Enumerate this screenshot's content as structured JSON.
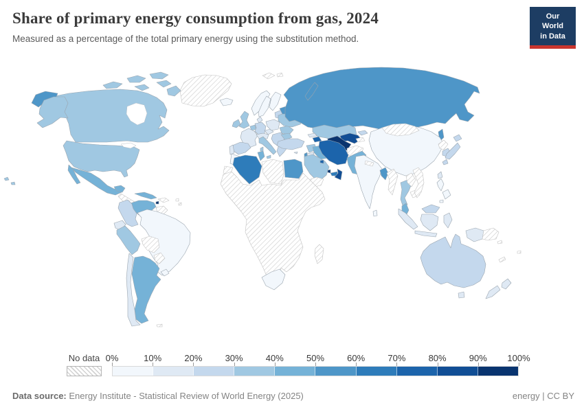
{
  "header": {
    "title": "Share of primary energy consumption from gas, 2024",
    "subtitle": "Measured as a percentage of the total primary energy using the substitution method.",
    "logo_line1": "Our World",
    "logo_line2": "in Data",
    "logo_bg": "#1d3d63",
    "logo_accent": "#c9352e"
  },
  "legend": {
    "no_data_label": "No data",
    "ticks": [
      "0%",
      "10%",
      "20%",
      "30%",
      "40%",
      "50%",
      "60%",
      "70%",
      "80%",
      "90%",
      "100%"
    ],
    "bin_colors": [
      "#f2f7fc",
      "#dfe9f4",
      "#c4d8ed",
      "#a0c8e2",
      "#75b2d7",
      "#4e96c8",
      "#2e7cba",
      "#1c64ab",
      "#114e95",
      "#09346f"
    ]
  },
  "map": {
    "ocean": "#ffffff",
    "border_color": "#9aa5af",
    "no_data_border": "#c2c2c2",
    "regions": {
      "greenland": "no_data",
      "svalbard": "no_data",
      "iceland": 0,
      "canada": 3,
      "usa": 3,
      "hawaii": 3,
      "alaska": 3,
      "chukotka": 5,
      "mexico": 4,
      "central_america": "no_data",
      "cuba": 4,
      "hispaniola": "no_data",
      "antilles": "no_data",
      "venezuela": 4,
      "trinidad": 9,
      "colombia": 2,
      "guyana": "no_data",
      "ecuador": 1,
      "peru": 3,
      "brazil": 0,
      "bolivia": "no_data",
      "paraguay": "no_data",
      "uruguay": 0,
      "argentina": 4,
      "chile": 1,
      "falklands": "no_data",
      "norway": 0,
      "sweden": 0,
      "finland": 0,
      "baltics": 2,
      "denmark": 1,
      "uk": 3,
      "ireland": 3,
      "benelux": 3,
      "germany": 2,
      "france": 1,
      "spain": 2,
      "portugal": 1,
      "alpine": 1,
      "czechia": 1,
      "poland": 1,
      "italy": 3,
      "balkans": 2,
      "romania": 3,
      "bulgaria": 3,
      "greece": 2,
      "ukraine": 3,
      "belarus": 5,
      "russia": 5,
      "kazakhstan": 3,
      "uzbekistan": 8,
      "turkmenistan": 9,
      "kyrgyzstan": 2,
      "tajikistan": "no_data",
      "georgia": 1,
      "azerbaijan": 7,
      "turkey": 2,
      "cyprus": 1,
      "syria": 3,
      "israel": 5,
      "jordan": 1,
      "iraq": 4,
      "iran": 7,
      "afghanistan": "no_data",
      "pakistan": 4,
      "saudi_arabia": 3,
      "kuwait": 7,
      "qatar": 9,
      "uae": 6,
      "oman": 8,
      "yemen": "no_data",
      "morocco": 0,
      "western_sahara": "no_data",
      "algeria": 6,
      "tunisia": 4,
      "libya": "no_data",
      "egypt": 5,
      "africa": "no_data",
      "south_africa": 0,
      "madagascar": "no_data",
      "india": 0,
      "sri_lanka": 0,
      "nepal": "no_data",
      "china": 0,
      "mongolia": "no_data",
      "bangladesh": 5,
      "myanmar": "no_data",
      "thailand": 3,
      "laos": "no_data",
      "cambodia": "no_data",
      "vietnam": "no_data",
      "malaysia_peninsula": 4,
      "malaysia_borneo": 2,
      "indonesia": 1,
      "png": "no_data",
      "philippines": 0,
      "taiwan": 1,
      "north_korea": "no_data",
      "south_korea": 2,
      "japan": 2,
      "australia": 2,
      "tasmania": 1,
      "new_zealand": 1,
      "new_caledonia": "no_data",
      "fiji": "no_data",
      "solomon": "no_data"
    }
  },
  "footer": {
    "source_label": "Data source:",
    "source_text": " Energy Institute - Statistical Review of World Energy (2025)",
    "license": "energy | CC BY"
  },
  "chart_data": {
    "type": "choropleth_map",
    "title": "Share of primary energy consumption from gas, 2024",
    "subtitle": "Measured as a percentage of the total primary energy using the substitution method.",
    "unit": "%",
    "scale_bins": [
      "0-10%",
      "10-20%",
      "20-30%",
      "30-40%",
      "40-50%",
      "50-60%",
      "60-70%",
      "70-80%",
      "80-90%",
      "90-100%"
    ],
    "legend_position": "bottom",
    "values": [
      {
        "country": "United States",
        "share": "30-40%"
      },
      {
        "country": "Canada",
        "share": "30-40%"
      },
      {
        "country": "Mexico",
        "share": "40-50%"
      },
      {
        "country": "Cuba",
        "share": "40-50%"
      },
      {
        "country": "Venezuela",
        "share": "40-50%"
      },
      {
        "country": "Trinidad and Tobago",
        "share": "90-100%"
      },
      {
        "country": "Colombia",
        "share": "20-30%"
      },
      {
        "country": "Ecuador",
        "share": "10-20%"
      },
      {
        "country": "Peru",
        "share": "30-40%"
      },
      {
        "country": "Brazil",
        "share": "0-10%"
      },
      {
        "country": "Chile",
        "share": "10-20%"
      },
      {
        "country": "Argentina",
        "share": "40-50%"
      },
      {
        "country": "Uruguay",
        "share": "0-10%"
      },
      {
        "country": "Iceland",
        "share": "0-10%"
      },
      {
        "country": "Norway",
        "share": "0-10%"
      },
      {
        "country": "Sweden",
        "share": "0-10%"
      },
      {
        "country": "Finland",
        "share": "0-10%"
      },
      {
        "country": "United Kingdom",
        "share": "30-40%"
      },
      {
        "country": "Ireland",
        "share": "30-40%"
      },
      {
        "country": "France",
        "share": "10-20%"
      },
      {
        "country": "Spain",
        "share": "20-30%"
      },
      {
        "country": "Portugal",
        "share": "10-20%"
      },
      {
        "country": "Germany",
        "share": "20-30%"
      },
      {
        "country": "Netherlands",
        "share": "30-40%"
      },
      {
        "country": "Poland",
        "share": "10-20%"
      },
      {
        "country": "Italy",
        "share": "30-40%"
      },
      {
        "country": "Greece",
        "share": "20-30%"
      },
      {
        "country": "Romania",
        "share": "30-40%"
      },
      {
        "country": "Ukraine",
        "share": "30-40%"
      },
      {
        "country": "Belarus",
        "share": "50-60%"
      },
      {
        "country": "Russia",
        "share": "50-60%"
      },
      {
        "country": "Kazakhstan",
        "share": "30-40%"
      },
      {
        "country": "Turkmenistan",
        "share": "90-100%"
      },
      {
        "country": "Uzbekistan",
        "share": "80-90%"
      },
      {
        "country": "Azerbaijan",
        "share": "70-80%"
      },
      {
        "country": "Georgia",
        "share": "10-20%"
      },
      {
        "country": "Turkey",
        "share": "20-30%"
      },
      {
        "country": "Syria",
        "share": "30-40%"
      },
      {
        "country": "Iraq",
        "share": "40-50%"
      },
      {
        "country": "Iran",
        "share": "70-80%"
      },
      {
        "country": "Pakistan",
        "share": "40-50%"
      },
      {
        "country": "India",
        "share": "0-10%"
      },
      {
        "country": "China",
        "share": "0-10%"
      },
      {
        "country": "Japan",
        "share": "20-30%"
      },
      {
        "country": "South Korea",
        "share": "20-30%"
      },
      {
        "country": "Taiwan",
        "share": "10-20%"
      },
      {
        "country": "Bangladesh",
        "share": "50-60%"
      },
      {
        "country": "Thailand",
        "share": "30-40%"
      },
      {
        "country": "Malaysia",
        "share": "30-40%"
      },
      {
        "country": "Indonesia",
        "share": "10-20%"
      },
      {
        "country": "Philippines",
        "share": "0-10%"
      },
      {
        "country": "Australia",
        "share": "20-30%"
      },
      {
        "country": "New Zealand",
        "share": "10-20%"
      },
      {
        "country": "Saudi Arabia",
        "share": "30-40%"
      },
      {
        "country": "Kuwait",
        "share": "70-80%"
      },
      {
        "country": "Qatar",
        "share": "90-100%"
      },
      {
        "country": "United Arab Emirates",
        "share": "60-70%"
      },
      {
        "country": "Oman",
        "share": "80-90%"
      },
      {
        "country": "Israel",
        "share": "50-60%"
      },
      {
        "country": "Jordan",
        "share": "10-20%"
      },
      {
        "country": "Egypt",
        "share": "50-60%"
      },
      {
        "country": "Tunisia",
        "share": "40-50%"
      },
      {
        "country": "Algeria",
        "share": "60-70%"
      },
      {
        "country": "Morocco",
        "share": "0-10%"
      },
      {
        "country": "South Africa",
        "share": "0-10%"
      }
    ],
    "no_data": [
      "Greenland",
      "Bolivia",
      "Paraguay",
      "Guyana",
      "Suriname",
      "most of Sub-Saharan Africa",
      "Libya",
      "Yemen",
      "Afghanistan",
      "Tajikistan",
      "Mongolia",
      "North Korea",
      "Nepal",
      "Myanmar",
      "Laos",
      "Cambodia",
      "Vietnam",
      "Madagascar",
      "Papua New Guinea"
    ]
  }
}
